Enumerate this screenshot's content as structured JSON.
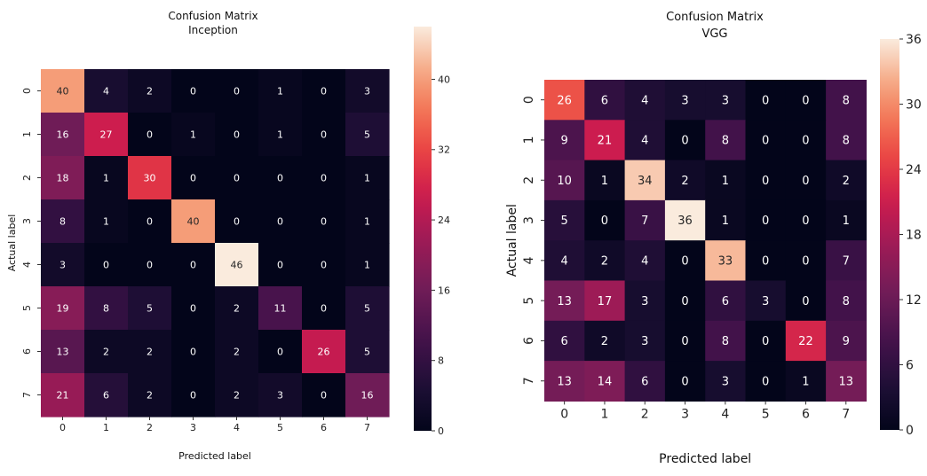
{
  "chart_data": [
    {
      "type": "heatmap",
      "title": "Confusion Matrix",
      "subtitle": "Inception",
      "xlabel": "Predicted label",
      "ylabel": "Actual label",
      "x_categories": [
        "0",
        "1",
        "2",
        "3",
        "4",
        "5",
        "6",
        "7"
      ],
      "y_categories": [
        "0",
        "1",
        "2",
        "3",
        "4",
        "5",
        "6",
        "7"
      ],
      "values": [
        [
          40,
          4,
          2,
          0,
          0,
          1,
          0,
          3
        ],
        [
          16,
          27,
          0,
          1,
          0,
          1,
          0,
          5
        ],
        [
          18,
          1,
          30,
          0,
          0,
          0,
          0,
          1
        ],
        [
          8,
          1,
          0,
          40,
          0,
          0,
          0,
          1
        ],
        [
          3,
          0,
          0,
          0,
          46,
          0,
          0,
          1
        ],
        [
          19,
          8,
          5,
          0,
          2,
          11,
          0,
          5
        ],
        [
          13,
          2,
          2,
          0,
          2,
          0,
          26,
          5
        ],
        [
          21,
          6,
          2,
          0,
          2,
          3,
          0,
          16
        ]
      ],
      "colorbar_range": [
        0,
        46
      ],
      "colorbar_ticks": [
        0,
        8,
        16,
        24,
        32,
        40
      ]
    },
    {
      "type": "heatmap",
      "title": "Confusion Matrix",
      "subtitle": "VGG",
      "xlabel": "Predicted label",
      "ylabel": "Actual label",
      "x_categories": [
        "0",
        "1",
        "2",
        "3",
        "4",
        "5",
        "6",
        "7"
      ],
      "y_categories": [
        "0",
        "1",
        "2",
        "3",
        "4",
        "5",
        "6",
        "7"
      ],
      "values": [
        [
          26,
          6,
          4,
          3,
          3,
          0,
          0,
          8
        ],
        [
          9,
          21,
          4,
          0,
          8,
          0,
          0,
          8
        ],
        [
          10,
          1,
          34,
          2,
          1,
          0,
          0,
          2
        ],
        [
          5,
          0,
          7,
          36,
          1,
          0,
          0,
          1
        ],
        [
          4,
          2,
          4,
          0,
          33,
          0,
          0,
          7
        ],
        [
          13,
          17,
          3,
          0,
          6,
          3,
          0,
          8
        ],
        [
          6,
          2,
          3,
          0,
          8,
          0,
          22,
          9
        ],
        [
          13,
          14,
          6,
          0,
          3,
          0,
          1,
          13
        ]
      ],
      "colorbar_range": [
        0,
        36
      ],
      "colorbar_ticks": [
        0,
        6,
        12,
        18,
        24,
        30,
        36
      ]
    }
  ]
}
